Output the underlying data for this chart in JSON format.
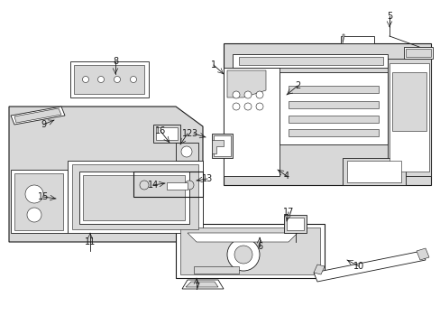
{
  "bg_color": "#ffffff",
  "lc": "#1a1a1a",
  "fill_gray": "#d8d8d8",
  "fill_white": "#ffffff",
  "figsize": [
    4.89,
    3.6
  ],
  "dpi": 100,
  "callouts": [
    [
      "1",
      237,
      72,
      248,
      82
    ],
    [
      "2",
      330,
      95,
      318,
      105
    ],
    [
      "3",
      215,
      148,
      228,
      152
    ],
    [
      "4",
      318,
      195,
      308,
      188
    ],
    [
      "5",
      432,
      18,
      432,
      30
    ],
    [
      "6",
      288,
      273,
      288,
      263
    ],
    [
      "7",
      218,
      318,
      218,
      308
    ],
    [
      "8",
      128,
      68,
      128,
      82
    ],
    [
      "9",
      48,
      138,
      60,
      133
    ],
    [
      "10",
      398,
      295,
      385,
      288
    ],
    [
      "11",
      100,
      268,
      100,
      258
    ],
    [
      "12",
      208,
      148,
      200,
      160
    ],
    [
      "13",
      230,
      198,
      218,
      200
    ],
    [
      "14",
      170,
      205,
      183,
      203
    ],
    [
      "15",
      48,
      218,
      62,
      220
    ],
    [
      "16",
      178,
      145,
      188,
      158
    ],
    [
      "17",
      320,
      235,
      318,
      245
    ]
  ]
}
